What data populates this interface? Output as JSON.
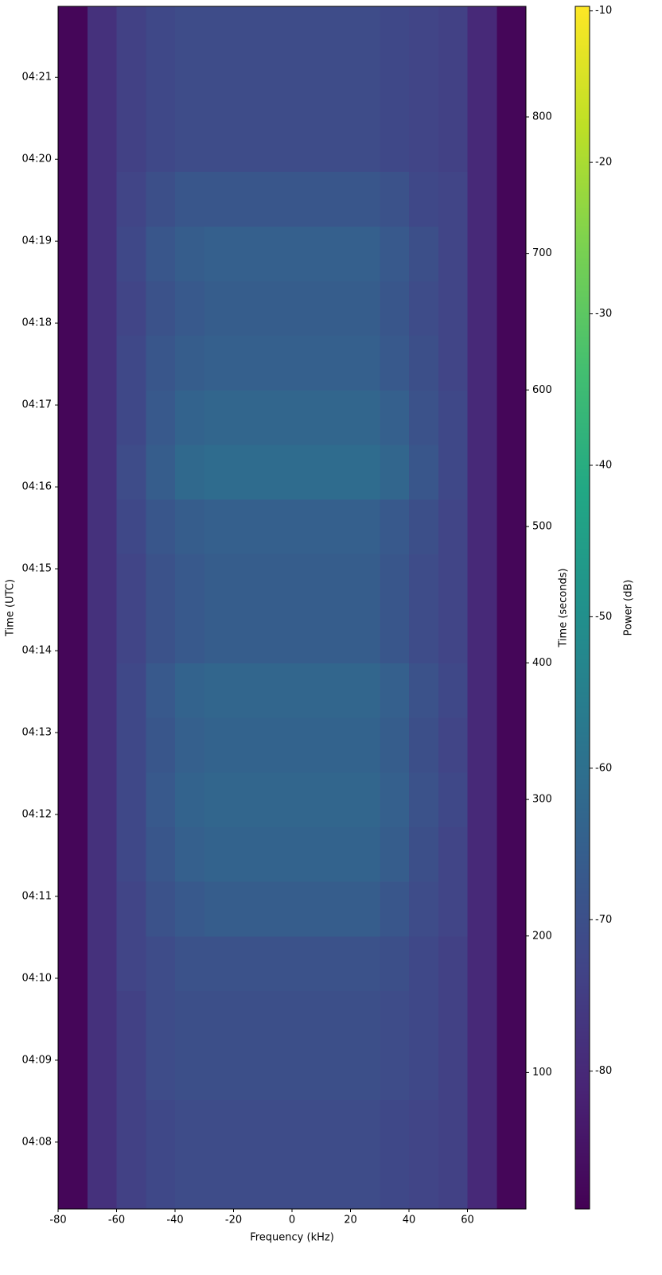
{
  "chart_data": {
    "type": "heatmap",
    "x_label": "Frequency (kHz)",
    "y_label": "Time (seconds)",
    "y2_label": "Time (UTC)",
    "colorbar_label": "Power (dB)",
    "colormap": "viridis",
    "xlim": [
      -80,
      80
    ],
    "xticks": [
      -80,
      -60,
      -40,
      -20,
      0,
      20,
      40,
      60
    ],
    "ylim": [
      0,
      881
    ],
    "yticks": [
      100,
      200,
      300,
      400,
      500,
      600,
      700,
      800
    ],
    "y2lim": [
      0,
      881
    ],
    "y2ticks": [
      {
        "value": 49,
        "label": "04:08"
      },
      {
        "value": 109,
        "label": "04:09"
      },
      {
        "value": 169,
        "label": "04:10"
      },
      {
        "value": 229,
        "label": "04:11"
      },
      {
        "value": 289,
        "label": "04:12"
      },
      {
        "value": 349,
        "label": "04:13"
      },
      {
        "value": 409,
        "label": "04:14"
      },
      {
        "value": 469,
        "label": "04:15"
      },
      {
        "value": 529,
        "label": "04:16"
      },
      {
        "value": 589,
        "label": "04:17"
      },
      {
        "value": 649,
        "label": "04:18"
      },
      {
        "value": 709,
        "label": "04:19"
      },
      {
        "value": 769,
        "label": "04:20"
      },
      {
        "value": 829,
        "label": "04:21"
      }
    ],
    "clim": [
      -89.1,
      -9.7
    ],
    "cticks": [
      -80,
      -70,
      -60,
      -50,
      -40,
      -30,
      -20,
      -10
    ],
    "x_bins": [
      -80,
      -70,
      -60,
      -50,
      -40,
      -30,
      -20,
      -10,
      0,
      10,
      20,
      30,
      40,
      50,
      60,
      70,
      80
    ],
    "y_bins": [
      0,
      40,
      80,
      120,
      160,
      200,
      240,
      280,
      320,
      360,
      400,
      440,
      480,
      520,
      560,
      600,
      640,
      680,
      720,
      760,
      800,
      840,
      881
    ],
    "values": [
      [
        -88,
        -78,
        -74,
        -72,
        -71,
        -71,
        -71,
        -71,
        -71,
        -71,
        -71,
        -72,
        -73,
        -74,
        -80,
        -88
      ],
      [
        -88,
        -78,
        -74,
        -72,
        -71,
        -71,
        -71,
        -71,
        -71,
        -71,
        -71,
        -72,
        -73,
        -74,
        -80,
        -88
      ],
      [
        -88,
        -78,
        -74,
        -71,
        -70,
        -70,
        -70,
        -70,
        -70,
        -70,
        -70,
        -71,
        -72,
        -74,
        -80,
        -88
      ],
      [
        -88,
        -78,
        -74,
        -71,
        -70,
        -70,
        -70,
        -70,
        -70,
        -70,
        -70,
        -71,
        -72,
        -74,
        -80,
        -88
      ],
      [
        -88,
        -78,
        -73,
        -71,
        -69,
        -69,
        -69,
        -69,
        -69,
        -69,
        -69,
        -70,
        -72,
        -74,
        -80,
        -88
      ],
      [
        -88,
        -78,
        -73,
        -69,
        -67,
        -66,
        -66,
        -66,
        -66,
        -66,
        -66,
        -68,
        -71,
        -73,
        -80,
        -88
      ],
      [
        -88,
        -78,
        -72,
        -68,
        -65,
        -64,
        -64,
        -64,
        -64,
        -64,
        -64,
        -66,
        -70,
        -73,
        -80,
        -88
      ],
      [
        -88,
        -78,
        -72,
        -67,
        -64,
        -63,
        -63,
        -63,
        -63,
        -63,
        -63,
        -65,
        -69,
        -72,
        -80,
        -88
      ],
      [
        -88,
        -78,
        -72,
        -68,
        -65,
        -64,
        -64,
        -64,
        -64,
        -64,
        -64,
        -66,
        -70,
        -73,
        -80,
        -88
      ],
      [
        -88,
        -78,
        -72,
        -67,
        -64,
        -63,
        -63,
        -63,
        -63,
        -63,
        -63,
        -65,
        -69,
        -72,
        -80,
        -88
      ],
      [
        -88,
        -78,
        -73,
        -69,
        -67,
        -66,
        -66,
        -66,
        -66,
        -66,
        -66,
        -68,
        -71,
        -73,
        -80,
        -88
      ],
      [
        -88,
        -78,
        -73,
        -69,
        -67,
        -66,
        -66,
        -66,
        -66,
        -66,
        -66,
        -68,
        -71,
        -73,
        -80,
        -88
      ],
      [
        -88,
        -78,
        -72,
        -68,
        -66,
        -65,
        -65,
        -65,
        -65,
        -65,
        -65,
        -67,
        -70,
        -73,
        -80,
        -88
      ],
      [
        -88,
        -78,
        -71,
        -66,
        -62,
        -61,
        -61,
        -61,
        -61,
        -61,
        -61,
        -63,
        -68,
        -72,
        -80,
        -88
      ],
      [
        -88,
        -78,
        -72,
        -67,
        -64,
        -63,
        -63,
        -63,
        -63,
        -63,
        -63,
        -65,
        -69,
        -72,
        -80,
        -88
      ],
      [
        -88,
        -78,
        -72,
        -68,
        -66,
        -65,
        -65,
        -65,
        -65,
        -65,
        -65,
        -67,
        -70,
        -73,
        -80,
        -88
      ],
      [
        -88,
        -78,
        -73,
        -69,
        -67,
        -66,
        -66,
        -66,
        -66,
        -66,
        -66,
        -68,
        -71,
        -73,
        -80,
        -88
      ],
      [
        -88,
        -78,
        -72,
        -68,
        -66,
        -65,
        -65,
        -65,
        -65,
        -65,
        -65,
        -67,
        -70,
        -73,
        -80,
        -88
      ],
      [
        -88,
        -78,
        -73,
        -70,
        -68,
        -68,
        -68,
        -68,
        -68,
        -68,
        -68,
        -69,
        -72,
        -73,
        -80,
        -88
      ],
      [
        -88,
        -78,
        -74,
        -72,
        -71,
        -71,
        -71,
        -71,
        -71,
        -71,
        -71,
        -72,
        -73,
        -74,
        -80,
        -88
      ],
      [
        -88,
        -78,
        -74,
        -72,
        -71,
        -71,
        -71,
        -71,
        -71,
        -71,
        -71,
        -72,
        -73,
        -74,
        -80,
        -88
      ],
      [
        -88,
        -78,
        -74,
        -72,
        -71,
        -71,
        -71,
        -71,
        -71,
        -71,
        -71,
        -72,
        -73,
        -74,
        -80,
        -88
      ]
    ]
  }
}
